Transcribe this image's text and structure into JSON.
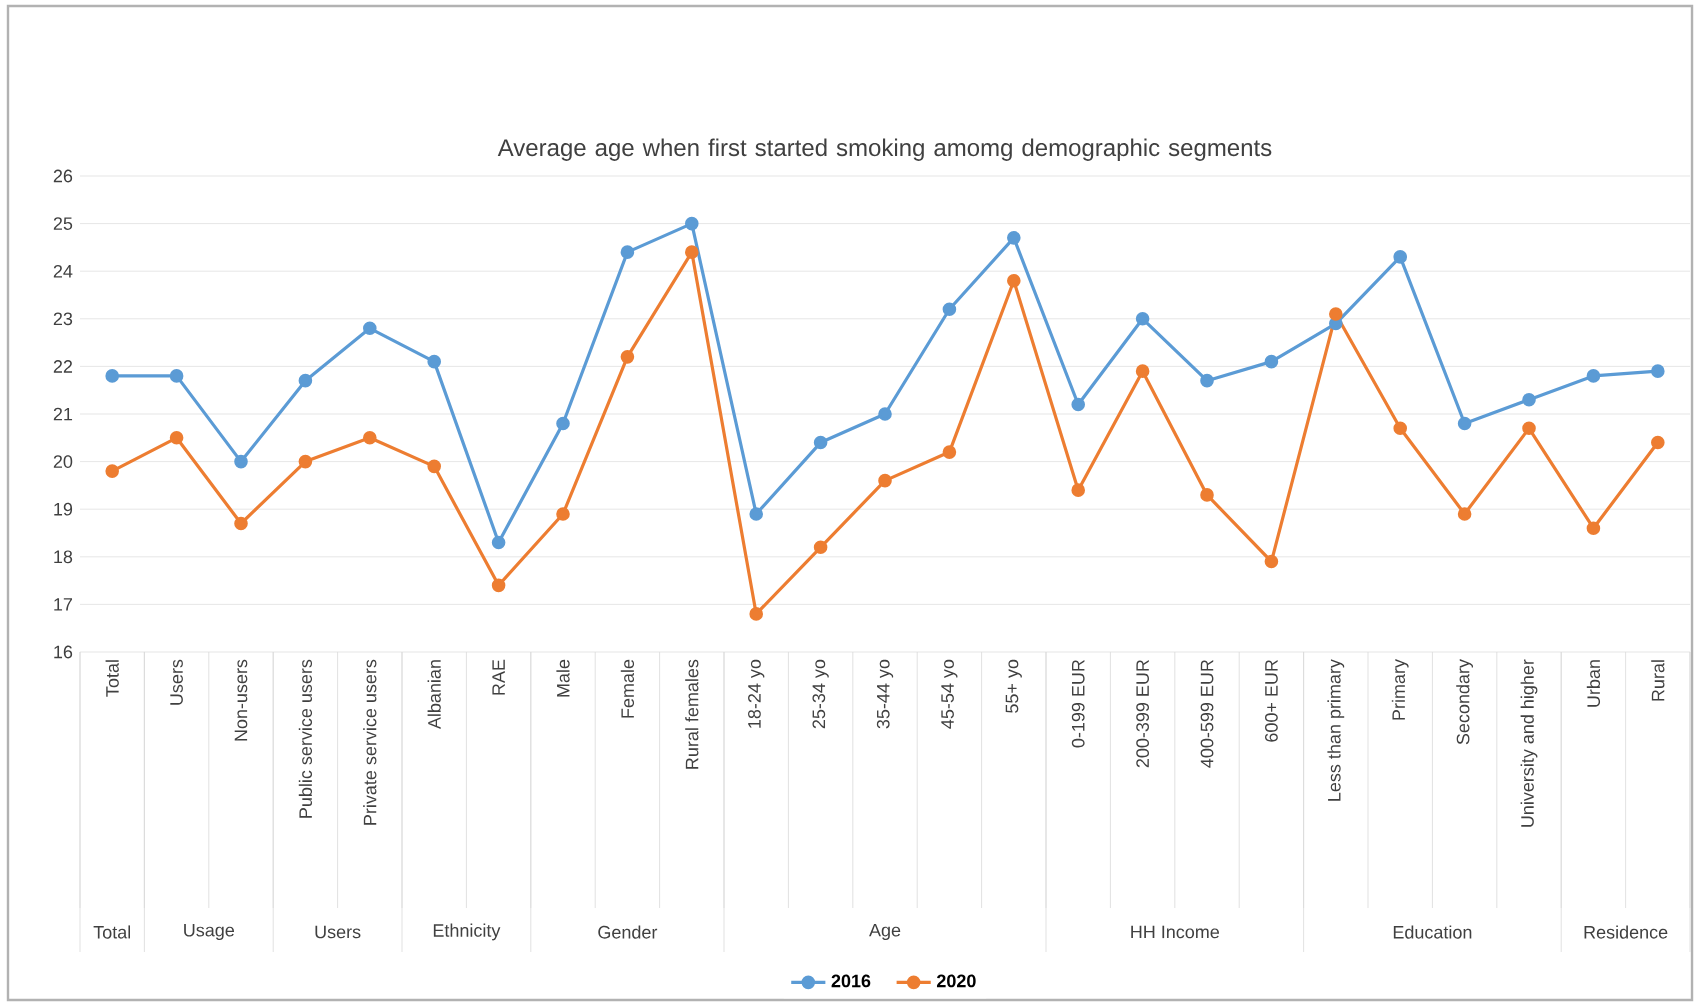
{
  "chart_data": {
    "type": "line",
    "title": "Average age when first started smoking amomg demographic segments",
    "categories": [
      "Total",
      "Users",
      "Non-users",
      "Public service users",
      "Private service users",
      "Albanian",
      "RAE",
      "Male",
      "Female",
      "Rural females",
      "18-24 yo",
      "25-34 yo",
      "35-44 yo",
      "45-54 yo",
      "55+ yo",
      "0-199 EUR",
      "200-399 EUR",
      "400-599 EUR",
      "600+ EUR",
      "Less than primary",
      "Primary",
      "Secondary",
      "University and higher",
      "Urban",
      "Rural"
    ],
    "series": [
      {
        "name": "2016",
        "color": "#5b9bd5",
        "values": [
          21.8,
          21.8,
          20.0,
          21.7,
          22.8,
          22.1,
          18.3,
          20.8,
          24.4,
          25.0,
          18.9,
          20.4,
          21.0,
          23.2,
          24.7,
          21.2,
          23.0,
          21.7,
          22.1,
          22.9,
          24.3,
          20.8,
          21.3,
          21.8,
          21.9
        ]
      },
      {
        "name": "2020",
        "color": "#ed7d31",
        "values": [
          19.8,
          20.5,
          18.7,
          20.0,
          20.5,
          19.9,
          17.4,
          18.9,
          22.2,
          24.4,
          16.8,
          18.2,
          19.6,
          20.2,
          23.8,
          19.4,
          21.9,
          19.3,
          17.9,
          23.1,
          20.7,
          18.9,
          20.7,
          18.6,
          20.4
        ]
      }
    ],
    "annotations": [
      "Total",
      "Usage",
      "Users",
      "Ethnicity",
      "Gender",
      "Age",
      "HH Income",
      "Education",
      "Residence"
    ],
    "ylim": [
      16,
      26
    ],
    "yticks": [
      16,
      17,
      18,
      19,
      20,
      21,
      22,
      23,
      24,
      25,
      26
    ],
    "grid": "y",
    "legend": "bottom",
    "marker": "circle",
    "line_style": "solid"
  }
}
